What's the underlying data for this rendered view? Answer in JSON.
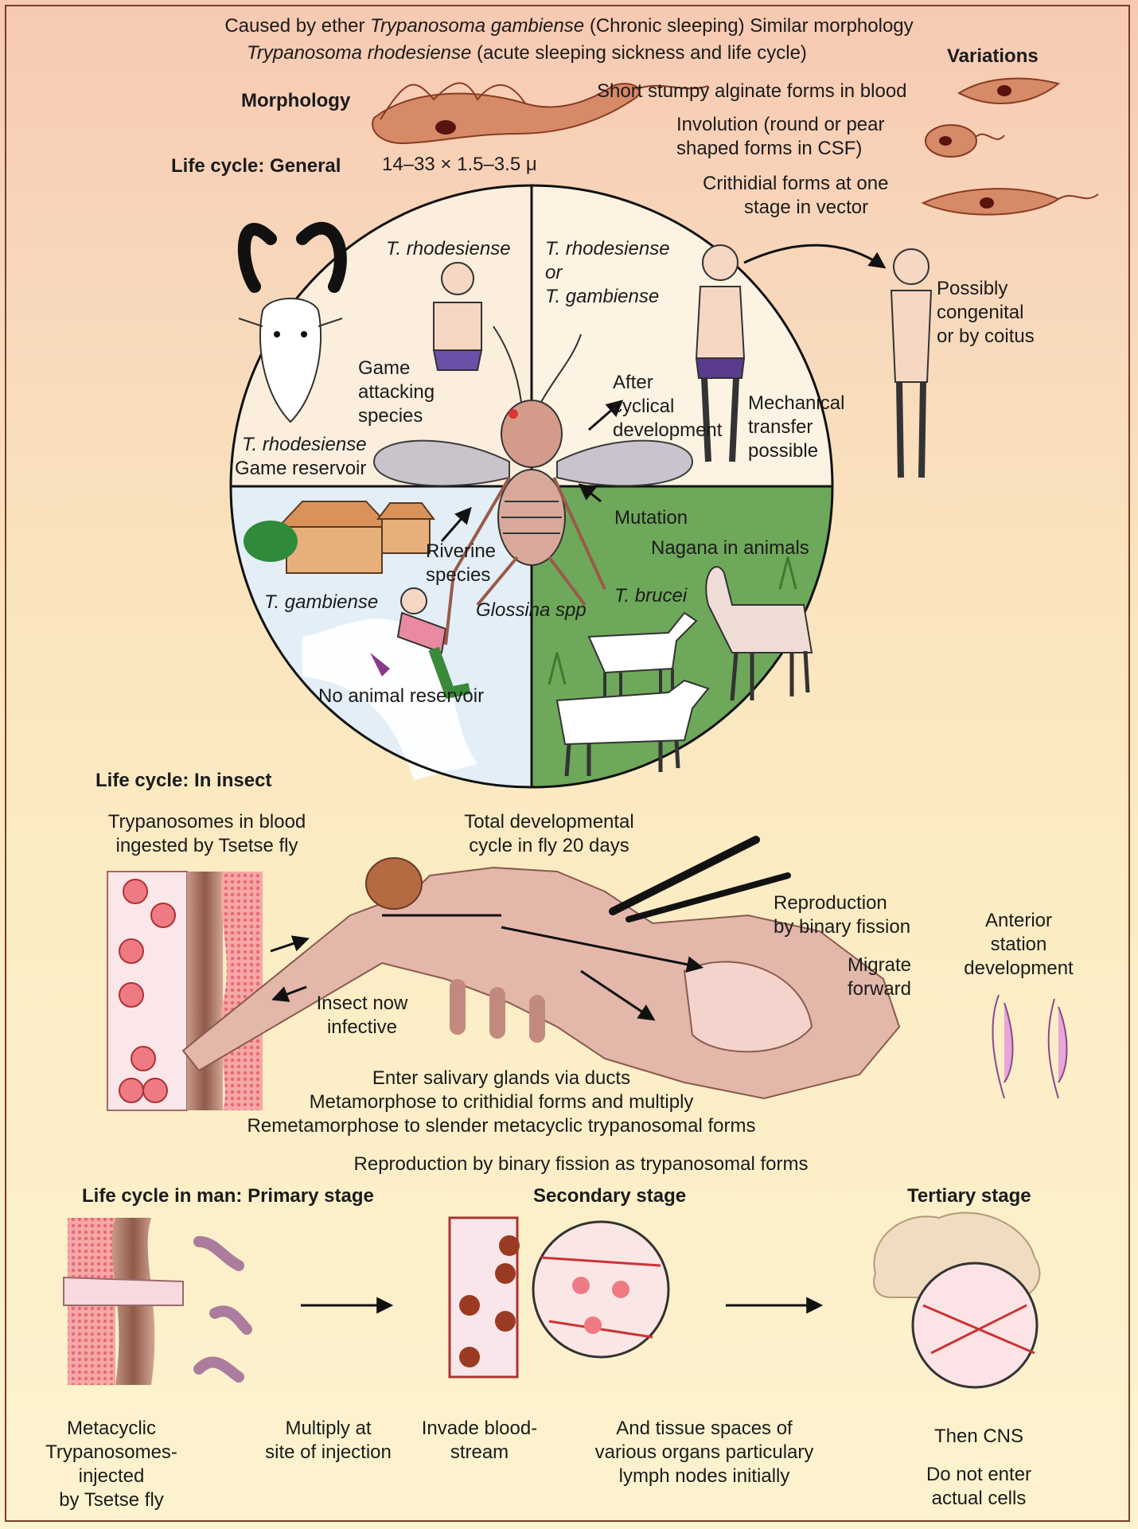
{
  "header": {
    "line1_a": "Caused by ether ",
    "line1_b": "Trypanosoma gambiense",
    "line1_c": " (Chronic sleeping) Similar morphology",
    "line2_a": "Trypanosoma rhodesiense",
    "line2_b": " (acute sleeping sickness and life cycle)",
    "variations": "Variations",
    "morphology": "Morphology",
    "life_cycle_general": "Life cycle: General",
    "size": "14–33 × 1.5–3.5 μ",
    "var_1": "Short stumpy alginate forms in blood",
    "var_2a": "Involution (round or pear",
    "var_2b": "shaped forms in CSF)",
    "var_3a": "Crithidial forms at one",
    "var_3b": "stage in vector"
  },
  "circle": {
    "t_rhodesiense_top": "T. rhodesiense",
    "game_attacking": [
      "Game",
      "attacking",
      "species"
    ],
    "t_rhod_game_1": "T. rhodesiense",
    "t_rhod_game_2": "Game reservoir",
    "rhod_or_gamb": [
      "T. rhodesiense",
      "or",
      "T. gambiense"
    ],
    "after_cyclical": [
      "After",
      "cyclical",
      "development"
    ],
    "mechanical": [
      "Mechanical",
      "transfer",
      "possible"
    ],
    "mutation": "Mutation",
    "nagana": "Nagana in animals",
    "riverine": [
      "Riverine",
      "species"
    ],
    "t_gambiense": "T. gambiense",
    "glossina": "Glossina spp",
    "t_brucei": "T. brucei",
    "no_animal": "No animal reservoir",
    "possibly": [
      "Possibly",
      "congenital",
      "or by coitus"
    ]
  },
  "insect": {
    "title": "Life cycle: In insect",
    "ingested": [
      "Trypanosomes in blood",
      "ingested by Tsetse fly"
    ],
    "total": [
      "Total developmental",
      "cycle in fly 20 days"
    ],
    "reproduction": [
      "Reproduction",
      "by binary fission"
    ],
    "migrate": [
      "Migrate",
      "forward"
    ],
    "anterior": [
      "Anterior",
      "station",
      "development"
    ],
    "infective": [
      "Insect now",
      "infective"
    ],
    "steps": [
      "Enter salivary glands via ducts",
      "Metamorphose to crithidial forms and multiply",
      "Remetamorphose to slender metacyclic trypanosomal forms"
    ],
    "repro_binary": "Reproduction by binary fission as trypanosomal forms"
  },
  "man": {
    "primary": "Life cycle in man: Primary stage",
    "secondary": "Secondary stage",
    "tertiary": "Tertiary stage",
    "metacyclic": [
      "Metacyclic",
      "Trypanosomes-",
      "injected",
      "by Tsetse fly"
    ],
    "multiply": [
      "Multiply at",
      "site of injection"
    ],
    "invade": [
      "Invade blood-",
      "stream"
    ],
    "tissue": [
      "And tissue spaces of",
      "various organs particulary",
      "lymph nodes initially"
    ],
    "cns": "Then CNS",
    "not_enter": [
      "Do not enter",
      "actual cells"
    ]
  },
  "colors": {
    "parasite": "#b8694a",
    "parasite_fill": "#e6a88a",
    "nucleus": "#5a1410",
    "frame": "#7a3b2a",
    "grass": "#5c9a4a",
    "water": "#dbe9f3",
    "fly": "#c98a78"
  }
}
